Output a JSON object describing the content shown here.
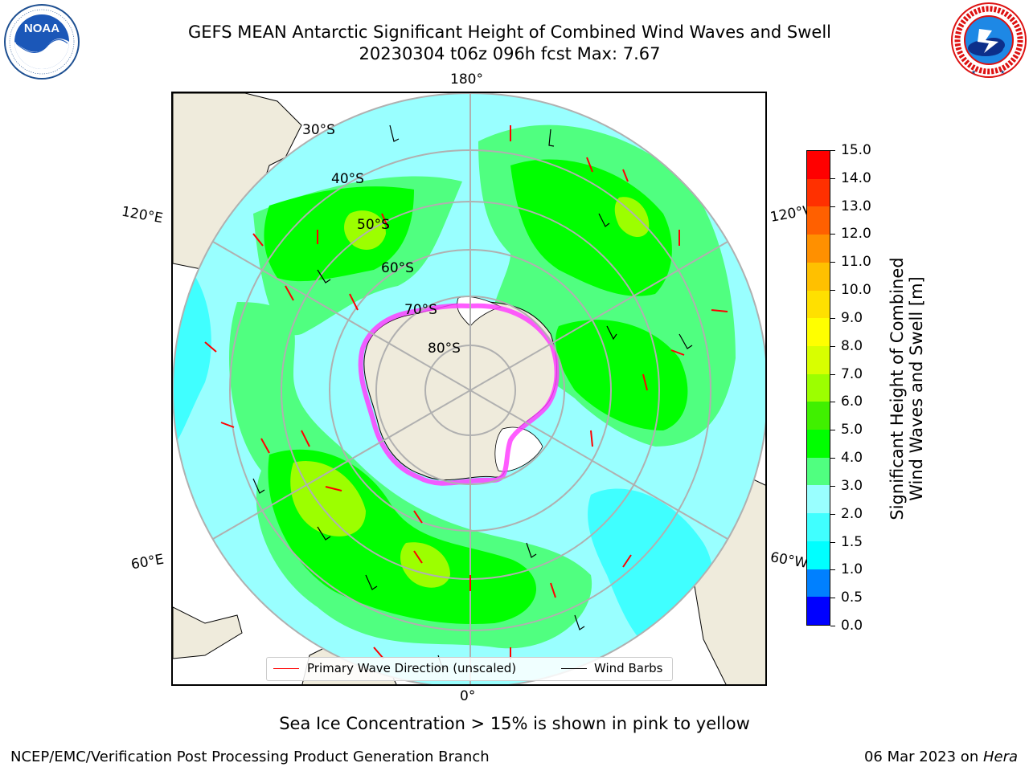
{
  "title": {
    "line1": "GEFS MEAN Antarctic Significant Height of Combined Wind Waves and Swell",
    "line2": "20230304 t06z 096h fcst   Max: 7.67"
  },
  "logos": {
    "left": {
      "text": "NOAA",
      "ring_text": "NATIONAL OCEANIC AND ATMOSPHERIC ADMINISTRATION · U.S. DEPARTMENT OF COMMERCE",
      "icon": "noaa-logo"
    },
    "right": {
      "ring_text": "NATIONAL WEATHER SERVICE",
      "icon": "nws-logo"
    }
  },
  "map": {
    "projection": "south-polar-stereographic",
    "longitude_labels": {
      "top": "180°",
      "bottom": "0°",
      "left_upper": "120°E",
      "left_lower": "60°E",
      "right_upper": "120°W",
      "right_lower": "60°W"
    },
    "latitude_labels": [
      "30°S",
      "40°S",
      "50°S",
      "60°S",
      "70°S",
      "80°S"
    ],
    "colors": {
      "land": "#efebdc",
      "grid": "#b0b0b0",
      "ice": "#ff40ff",
      "wave_arrow": "#ff0000",
      "wind_barb": "#000000"
    }
  },
  "legend": {
    "wave_label": "Primary Wave Direction (unscaled)",
    "wind_label": "Wind Barbs"
  },
  "colorbar": {
    "label_line1": "Significant Height of Combined",
    "label_line2": "Wind Waves and Swell [m]",
    "ticks": [
      "0.0",
      "0.5",
      "1.0",
      "1.5",
      "2.0",
      "3.0",
      "4.0",
      "5.0",
      "6.0",
      "7.0",
      "8.0",
      "9.0",
      "10.0",
      "11.0",
      "12.0",
      "13.0",
      "14.0",
      "15.0"
    ],
    "colors": [
      "#0000ff",
      "#0080ff",
      "#00ffff",
      "#40ffff",
      "#99ffff",
      "#50ff80",
      "#00ff00",
      "#40f000",
      "#9cff00",
      "#d8ff00",
      "#ffff00",
      "#ffe000",
      "#ffc000",
      "#ff9000",
      "#ff6000",
      "#ff3000",
      "#ff0000"
    ]
  },
  "caption": "Sea Ice Concentration > 15% is shown in pink to yellow",
  "footer": {
    "left": "NCEP/EMC/Verification Post Processing Product Generation Branch",
    "date": "06 Mar 2023 on ",
    "host": "Hera"
  }
}
